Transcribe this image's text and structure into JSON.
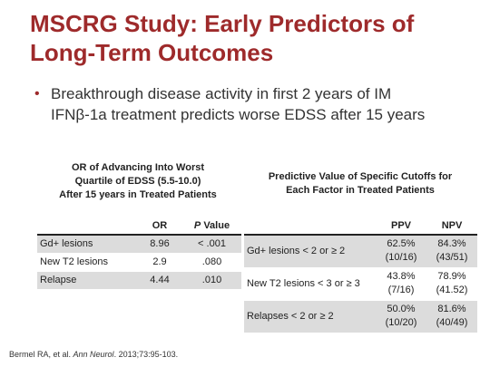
{
  "slide": {
    "title_line1": "MSCRG Study: Early Predictors of",
    "title_line2": "Long-Term Outcomes",
    "bullet_line1": "Breakthrough disease activity in first 2 years of IM",
    "bullet_line2": "IFNβ-1a treatment predicts worse EDSS after 15 years"
  },
  "table1": {
    "caption_line1": "OR of Advancing Into Worst",
    "caption_line2": "Quartile of EDSS (5.5-10.0)",
    "caption_line3": "After 15 years in Treated Patients",
    "headers": {
      "col0": "",
      "col1": "OR",
      "col2_italic": "P",
      "col2_rest": " Value"
    },
    "rows": [
      {
        "label": "Gd+ lesions",
        "or": "8.96",
        "p": "< .001"
      },
      {
        "label": "New T2 lesions",
        "or": "2.9",
        "p": ".080"
      },
      {
        "label": "Relapse",
        "or": "4.44",
        "p": ".010"
      }
    ]
  },
  "table2": {
    "caption_line1": "Predictive Value of Specific Cutoffs for",
    "caption_line2": "Each Factor in Treated Patients",
    "headers": {
      "col0": "",
      "col1": "PPV",
      "col2": "NPV"
    },
    "rows": [
      {
        "label": "Gd+ lesions < 2 or ≥ 2",
        "ppv": "62.5%",
        "ppv_frac": "(10/16)",
        "npv": "84.3%",
        "npv_frac": "(43/51)"
      },
      {
        "label": "New T2 lesions < 3 or ≥ 3",
        "ppv": "43.8%",
        "ppv_frac": "(7/16)",
        "npv": "78.9%",
        "npv_frac": "(41.52)"
      },
      {
        "label": "Relapses < 2 or ≥ 2",
        "ppv": "50.0%",
        "ppv_frac": "(10/20)",
        "npv": "81.6%",
        "npv_frac": "(40/49)"
      }
    ]
  },
  "citation": {
    "prefix": "Bermel RA, et al. ",
    "journal": "Ann Neurol",
    "suffix": ". 2013;73:95-103."
  },
  "colors": {
    "title": "#9e2a2b",
    "row_shade": "#dcdcdc"
  }
}
